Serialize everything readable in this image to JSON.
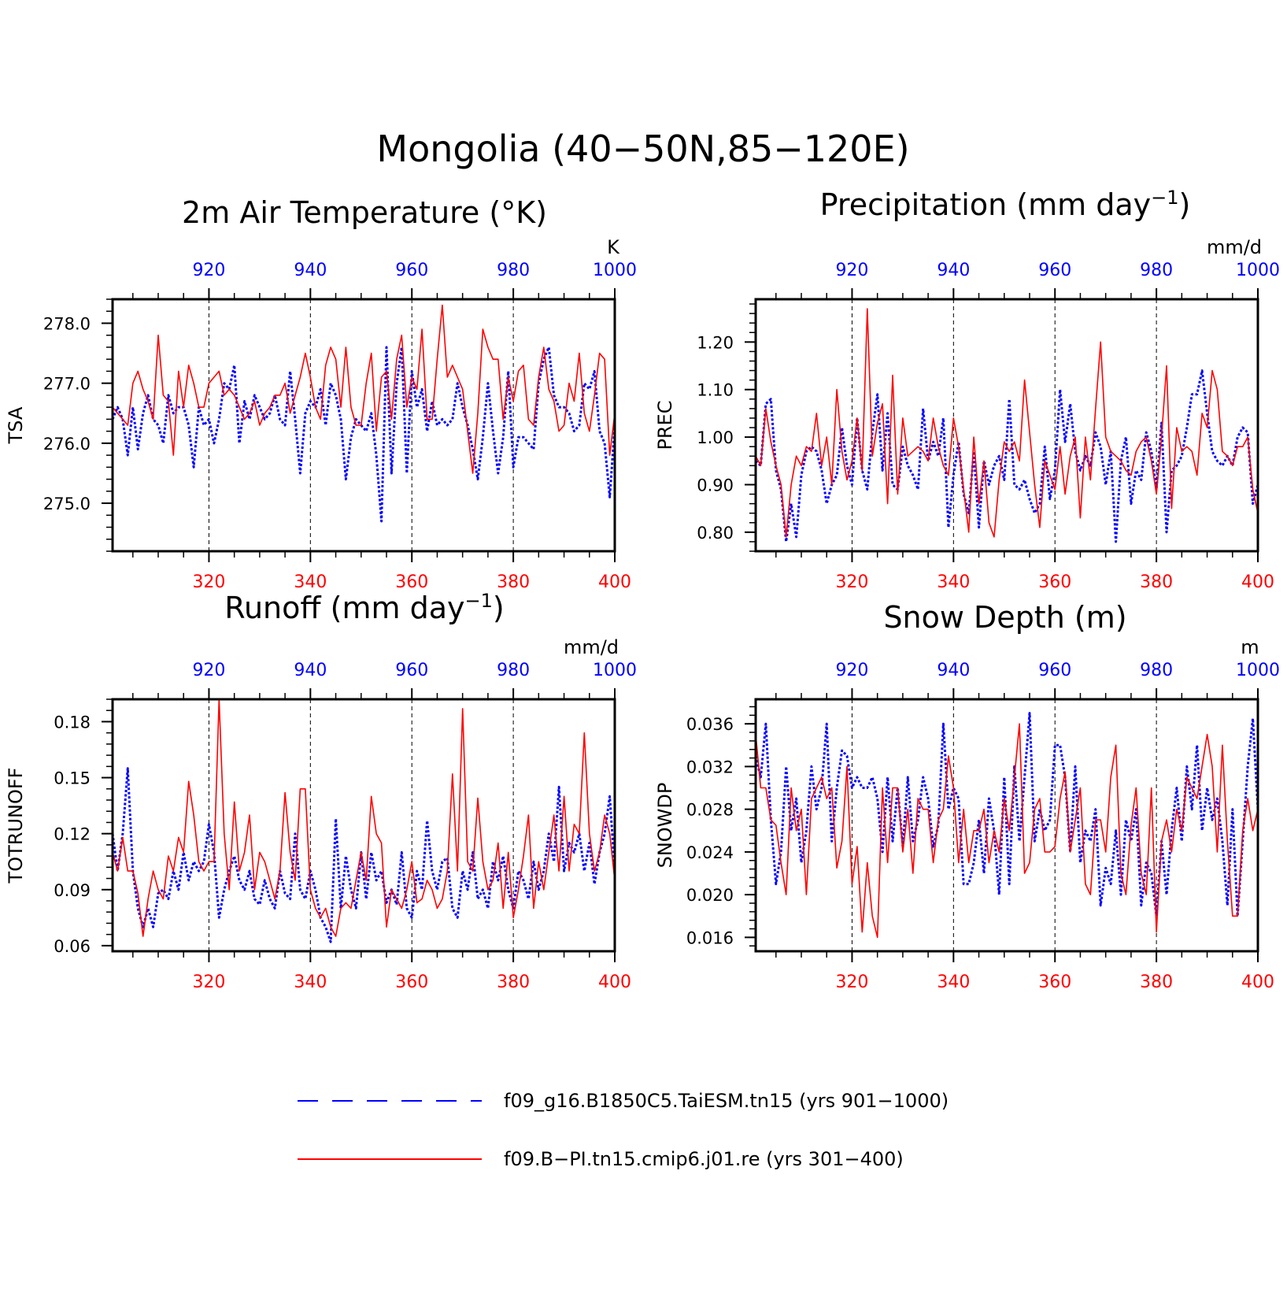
{
  "title": "Mongolia (40−50N,85−120E)",
  "colors": {
    "blue_series": "#0000ff",
    "red_series": "#ff0000",
    "axis": "#000000"
  },
  "legend": [
    {
      "label": "f09_g16.B1850C5.TaiESM.tn15 (yrs 901−1000)",
      "color": "#0000ff",
      "style": "dashed"
    },
    {
      "label": "f09.B−PI.tn15.cmip6.j01.re (yrs 301−400)",
      "color": "#ff0000",
      "style": "solid"
    }
  ],
  "chart_data": [
    {
      "type": "line",
      "title": "2m Air Temperature (°K)",
      "ylabel": "TSA",
      "units": "K",
      "ylim": [
        274.2,
        278.4
      ],
      "yticks": [
        "275.0",
        "276.0",
        "277.0",
        "278.0"
      ],
      "xlim_bottom": [
        301,
        400
      ],
      "xticks_bottom": [
        "320",
        "340",
        "360",
        "380",
        "400"
      ],
      "xlim_top": [
        901,
        1000
      ],
      "xticks_top": [
        "920",
        "940",
        "960",
        "980",
        "1000"
      ],
      "grid": "dashed vertical at 320,340,360,380",
      "series": [
        {
          "values": [
            276.4,
            276.6,
            276.4,
            275.8,
            276.6,
            275.9,
            276.5,
            276.8,
            276.4,
            276.3,
            276.0,
            276.8,
            276.5,
            276.6,
            276.6,
            276.3,
            275.6,
            276.6,
            276.3,
            276.4,
            276.0,
            276.4,
            277.0,
            276.9,
            277.3,
            276.0,
            276.7,
            276.4,
            276.8,
            276.6,
            276.4,
            276.5,
            276.8,
            276.4,
            276.3,
            277.2,
            276.4,
            275.5,
            276.5,
            276.7,
            276.6,
            276.9,
            276.3,
            277.0,
            276.8,
            276.4,
            275.4,
            276.1,
            276.4,
            276.3,
            276.2,
            276.5,
            275.8,
            274.7,
            277.6,
            275.5,
            277.0,
            277.6,
            275.5,
            277.2,
            276.6,
            276.9,
            276.2,
            276.7,
            276.3,
            276.4,
            276.3,
            276.4,
            277.0,
            276.6,
            276.3,
            275.9,
            275.4,
            276.1,
            277.0,
            276.2,
            275.5,
            276.1,
            277.2,
            275.6,
            276.1,
            276.1,
            276.0,
            275.9,
            277.0,
            277.4,
            277.6,
            276.8,
            276.6,
            276.6,
            276.5,
            276.2,
            276.3,
            277.0,
            276.9,
            277.2,
            276.2,
            276.0,
            275.1,
            276.3
          ]
        },
        {
          "values": [
            276.6,
            276.5,
            276.4,
            276.3,
            277.0,
            277.2,
            276.9,
            276.7,
            276.4,
            277.8,
            276.8,
            276.7,
            275.8,
            277.2,
            276.6,
            277.3,
            277.0,
            276.6,
            276.6,
            277.0,
            277.1,
            277.2,
            276.8,
            276.9,
            276.8,
            276.6,
            276.4,
            276.5,
            276.7,
            276.3,
            276.5,
            276.6,
            276.8,
            276.8,
            277.0,
            276.5,
            276.8,
            277.1,
            277.5,
            277.1,
            276.6,
            276.4,
            277.3,
            277.6,
            277.4,
            276.6,
            277.6,
            276.6,
            276.3,
            276.3,
            277.0,
            277.5,
            276.2,
            277.1,
            277.2,
            276.4,
            277.4,
            277.8,
            276.6,
            277.1,
            276.9,
            277.9,
            276.4,
            276.4,
            277.4,
            278.3,
            277.1,
            277.3,
            277.1,
            276.9,
            276.2,
            275.5,
            276.5,
            277.9,
            277.6,
            277.4,
            277.4,
            276.4,
            277.1,
            276.7,
            277.2,
            277.3,
            276.4,
            276.3,
            277.1,
            277.6,
            276.9,
            276.7,
            276.2,
            276.3,
            277.0,
            276.7,
            277.5,
            276.5,
            276.2,
            276.8,
            277.5,
            277.4,
            275.8,
            276.5
          ]
        }
      ]
    },
    {
      "type": "line",
      "title": "Precipitation (mm day",
      "title_superscript": "−1",
      "title_suffix": ")",
      "ylabel": "PREC",
      "units": "mm/d",
      "ylim": [
        0.76,
        1.29
      ],
      "yticks": [
        "0.80",
        "0.90",
        "1.00",
        "1.10",
        "1.20"
      ],
      "xlim_bottom": [
        301,
        400
      ],
      "xticks_bottom": [
        "320",
        "340",
        "360",
        "380",
        "400"
      ],
      "xlim_top": [
        901,
        1000
      ],
      "xticks_top": [
        "920",
        "940",
        "960",
        "980",
        "1000"
      ],
      "grid": "dashed vertical at 320,340,360,380",
      "series": [
        {
          "values": [
            0.95,
            0.94,
            1.07,
            1.08,
            0.93,
            0.89,
            0.78,
            0.86,
            0.79,
            0.92,
            0.97,
            0.98,
            0.97,
            0.93,
            0.86,
            0.9,
            0.92,
            1.02,
            0.94,
            0.9,
            1.04,
            0.93,
            0.89,
            1.01,
            1.09,
            0.93,
            1.05,
            0.9,
            0.89,
            0.98,
            0.94,
            0.92,
            0.89,
            1.06,
            0.95,
            0.99,
            0.96,
            1.04,
            0.81,
            0.92,
            0.99,
            0.88,
            0.84,
            0.97,
            0.81,
            0.95,
            0.9,
            0.94,
            0.96,
            0.91,
            1.08,
            0.9,
            0.89,
            0.91,
            0.87,
            0.84,
            0.86,
            0.98,
            0.87,
            0.93,
            1.1,
            0.99,
            1.07,
            0.97,
            0.93,
            0.96,
            0.94,
            1.01,
            0.98,
            0.9,
            0.97,
            0.78,
            0.95,
            1.0,
            0.86,
            0.93,
            0.91,
            1.01,
            0.97,
            0.89,
            1.03,
            0.8,
            0.93,
            0.94,
            0.96,
            1.02,
            1.09,
            1.09,
            1.14,
            1.05,
            0.97,
            0.95,
            0.94,
            0.96,
            0.94,
            1.0,
            1.02,
            1.01,
            0.86,
            0.9
          ]
        },
        {
          "values": [
            0.96,
            0.94,
            1.06,
            0.99,
            0.94,
            0.9,
            0.79,
            0.9,
            0.96,
            0.94,
            0.98,
            0.97,
            1.05,
            0.94,
            1.0,
            0.9,
            1.1,
            0.97,
            0.91,
            0.95,
            1.04,
            0.93,
            1.27,
            0.96,
            1.03,
            1.07,
            0.86,
            1.13,
            0.88,
            1.04,
            0.96,
            0.97,
            0.98,
            0.97,
            0.95,
            1.04,
            0.98,
            0.94,
            0.92,
            1.04,
            0.98,
            0.89,
            0.8,
            1.0,
            0.86,
            0.95,
            0.82,
            0.79,
            0.91,
            0.99,
            0.97,
            0.99,
            0.95,
            1.12,
            1.01,
            0.9,
            0.81,
            0.95,
            0.92,
            0.89,
            0.98,
            0.88,
            0.96,
            1.0,
            0.83,
            1.0,
            0.91,
            1.06,
            1.2,
            1.0,
            0.97,
            0.96,
            0.95,
            0.93,
            0.92,
            0.97,
            0.99,
            1.0,
            0.95,
            0.88,
            1.0,
            1.15,
            0.85,
            1.02,
            0.97,
            0.98,
            0.97,
            0.92,
            1.05,
            1.02,
            1.14,
            1.1,
            0.97,
            0.96,
            0.94,
            0.98,
            0.98,
            1.0,
            0.89,
            0.84
          ]
        }
      ]
    },
    {
      "type": "line",
      "title": "Runoff (mm day",
      "title_superscript": "−1",
      "title_suffix": ")",
      "ylabel": "TOTRUNOFF",
      "units": "mm/d",
      "ylim": [
        0.057,
        0.192
      ],
      "yticks": [
        "0.06",
        "0.09",
        "0.12",
        "0.15",
        "0.18"
      ],
      "xlim_bottom": [
        301,
        400
      ],
      "xticks_bottom": [
        "320",
        "340",
        "360",
        "380",
        "400"
      ],
      "xlim_top": [
        901,
        1000
      ],
      "xticks_top": [
        "920",
        "940",
        "960",
        "980",
        "1000"
      ],
      "grid": "dashed vertical at 320,340,360,380",
      "series": [
        {
          "values": [
            0.12,
            0.1,
            0.12,
            0.155,
            0.1,
            0.08,
            0.07,
            0.08,
            0.07,
            0.088,
            0.09,
            0.085,
            0.1,
            0.09,
            0.11,
            0.095,
            0.105,
            0.1,
            0.105,
            0.125,
            0.11,
            0.075,
            0.09,
            0.1,
            0.108,
            0.095,
            0.09,
            0.1,
            0.085,
            0.082,
            0.095,
            0.085,
            0.08,
            0.1,
            0.088,
            0.085,
            0.12,
            0.09,
            0.085,
            0.1,
            0.09,
            0.075,
            0.07,
            0.062,
            0.128,
            0.08,
            0.108,
            0.09,
            0.08,
            0.11,
            0.085,
            0.11,
            0.095,
            0.1,
            0.083,
            0.09,
            0.082,
            0.11,
            0.08,
            0.075,
            0.1,
            0.09,
            0.127,
            0.1,
            0.09,
            0.105,
            0.107,
            0.08,
            0.075,
            0.1,
            0.09,
            0.11,
            0.085,
            0.09,
            0.08,
            0.105,
            0.095,
            0.108,
            0.09,
            0.08,
            0.1,
            0.095,
            0.085,
            0.105,
            0.09,
            0.1,
            0.12,
            0.105,
            0.145,
            0.1,
            0.115,
            0.11,
            0.12,
            0.1,
            0.115,
            0.093,
            0.11,
            0.12,
            0.14,
            0.1
          ]
        },
        {
          "values": [
            0.11,
            0.1,
            0.118,
            0.1,
            0.1,
            0.088,
            0.065,
            0.085,
            0.1,
            0.09,
            0.085,
            0.108,
            0.1,
            0.118,
            0.11,
            0.148,
            0.13,
            0.105,
            0.1,
            0.105,
            0.105,
            0.192,
            0.12,
            0.09,
            0.137,
            0.1,
            0.11,
            0.13,
            0.09,
            0.11,
            0.105,
            0.095,
            0.085,
            0.1,
            0.142,
            0.11,
            0.095,
            0.144,
            0.144,
            0.09,
            0.08,
            0.075,
            0.08,
            0.07,
            0.065,
            0.08,
            0.083,
            0.08,
            0.095,
            0.11,
            0.095,
            0.14,
            0.12,
            0.115,
            0.07,
            0.09,
            0.085,
            0.08,
            0.09,
            0.105,
            0.083,
            0.085,
            0.095,
            0.09,
            0.08,
            0.085,
            0.1,
            0.152,
            0.1,
            0.187,
            0.105,
            0.1,
            0.139,
            0.105,
            0.09,
            0.095,
            0.115,
            0.08,
            0.11,
            0.075,
            0.09,
            0.108,
            0.13,
            0.08,
            0.105,
            0.09,
            0.11,
            0.13,
            0.1,
            0.14,
            0.1,
            0.125,
            0.12,
            0.174,
            0.12,
            0.1,
            0.11,
            0.13,
            0.12,
            0.095
          ]
        }
      ]
    },
    {
      "type": "line",
      "title": "Snow Depth (m)",
      "ylabel": "SNOWDP",
      "units": "m",
      "ylim": [
        0.0147,
        0.0383
      ],
      "yticks": [
        "0.016",
        "0.020",
        "0.024",
        "0.028",
        "0.032",
        "0.036"
      ],
      "xlim_bottom": [
        301,
        400
      ],
      "xticks_bottom": [
        "320",
        "340",
        "360",
        "380",
        "400"
      ],
      "xlim_top": [
        901,
        1000
      ],
      "xticks_top": [
        "920",
        "940",
        "960",
        "980",
        "1000"
      ],
      "grid": "dashed vertical at 320,340,360,380",
      "series": [
        {
          "values": [
            0.033,
            0.031,
            0.036,
            0.027,
            0.021,
            0.024,
            0.032,
            0.026,
            0.029,
            0.023,
            0.026,
            0.032,
            0.028,
            0.03,
            0.036,
            0.025,
            0.03,
            0.0335,
            0.033,
            0.03,
            0.031,
            0.03,
            0.03,
            0.031,
            0.029,
            0.024,
            0.031,
            0.025,
            0.03,
            0.0245,
            0.031,
            0.025,
            0.027,
            0.031,
            0.029,
            0.0245,
            0.0265,
            0.036,
            0.028,
            0.03,
            0.029,
            0.021,
            0.021,
            0.023,
            0.027,
            0.022,
            0.029,
            0.026,
            0.02,
            0.031,
            0.021,
            0.032,
            0.025,
            0.031,
            0.037,
            0.025,
            0.028,
            0.026,
            0.027,
            0.034,
            0.034,
            0.031,
            0.024,
            0.032,
            0.023,
            0.026,
            0.025,
            0.028,
            0.019,
            0.0225,
            0.021,
            0.026,
            0.02,
            0.027,
            0.025,
            0.028,
            0.019,
            0.023,
            0.022,
            0.018,
            0.025,
            0.02,
            0.026,
            0.03,
            0.025,
            0.032,
            0.028,
            0.034,
            0.026,
            0.03,
            0.027,
            0.029,
            0.025,
            0.019,
            0.028,
            0.018,
            0.025,
            0.032,
            0.0365,
            0.028
          ]
        },
        {
          "values": [
            0.035,
            0.03,
            0.03,
            0.027,
            0.0265,
            0.023,
            0.02,
            0.03,
            0.026,
            0.028,
            0.02,
            0.029,
            0.03,
            0.031,
            0.029,
            0.03,
            0.0225,
            0.025,
            0.032,
            0.021,
            0.0245,
            0.0165,
            0.023,
            0.018,
            0.016,
            0.03,
            0.023,
            0.03,
            0.03,
            0.024,
            0.028,
            0.022,
            0.029,
            0.028,
            0.028,
            0.023,
            0.027,
            0.028,
            0.033,
            0.03,
            0.023,
            0.028,
            0.023,
            0.026,
            0.026,
            0.028,
            0.023,
            0.026,
            0.024,
            0.029,
            0.026,
            0.031,
            0.036,
            0.022,
            0.023,
            0.028,
            0.029,
            0.024,
            0.024,
            0.0245,
            0.029,
            0.0315,
            0.024,
            0.027,
            0.03,
            0.021,
            0.02,
            0.027,
            0.027,
            0.024,
            0.031,
            0.034,
            0.022,
            0.02,
            0.0265,
            0.03,
            0.022,
            0.02,
            0.03,
            0.0165,
            0.025,
            0.027,
            0.024,
            0.028,
            0.026,
            0.031,
            0.03,
            0.029,
            0.032,
            0.035,
            0.032,
            0.024,
            0.034,
            0.025,
            0.018,
            0.018,
            0.026,
            0.029,
            0.026,
            0.028
          ]
        }
      ]
    }
  ]
}
